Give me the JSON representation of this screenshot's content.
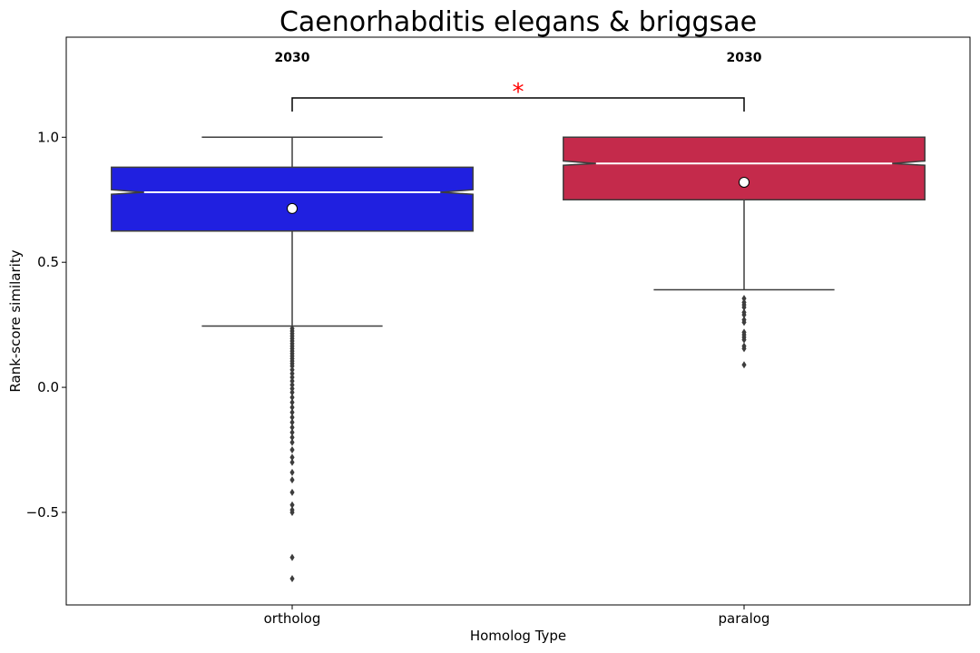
{
  "chart_data": {
    "type": "box",
    "title": "Caenorhabditis elegans & briggsae",
    "xlabel": "Homolog Type",
    "ylabel": "Rank-score similarity",
    "ylim": [
      -0.87,
      1.4
    ],
    "yticks": [
      -0.5,
      0.0,
      0.5,
      1.0
    ],
    "ytick_labels": [
      "−0.5",
      "0.0",
      "0.5",
      "1.0"
    ],
    "grid": false,
    "notched": true,
    "categories": [
      "ortholog",
      "paralog"
    ],
    "series": [
      {
        "category": "ortholog",
        "color": "#2020e0",
        "count_label": "2030",
        "whisker_low": 0.245,
        "q1": 0.625,
        "median": 0.78,
        "notch_low": 0.772,
        "notch_high": 0.79,
        "q3": 0.88,
        "whisker_high": 1.0,
        "mean": 0.715,
        "outliers": [
          0.235,
          0.225,
          0.215,
          0.205,
          0.195,
          0.185,
          0.175,
          0.165,
          0.155,
          0.145,
          0.135,
          0.125,
          0.115,
          0.105,
          0.095,
          0.085,
          0.07,
          0.055,
          0.04,
          0.025,
          0.01,
          -0.005,
          -0.02,
          -0.04,
          -0.06,
          -0.08,
          -0.1,
          -0.12,
          -0.14,
          -0.16,
          -0.18,
          -0.2,
          -0.22,
          -0.25,
          -0.28,
          -0.3,
          -0.34,
          -0.37,
          -0.42,
          -0.47,
          -0.49,
          -0.5,
          -0.68,
          -0.765
        ]
      },
      {
        "category": "paralog",
        "color": "#c42a4b",
        "count_label": "2030",
        "whisker_low": 0.39,
        "q1": 0.75,
        "median": 0.895,
        "notch_low": 0.888,
        "notch_high": 0.905,
        "q3": 1.0,
        "whisker_high": 1.0,
        "mean": 0.82,
        "outliers": [
          0.355,
          0.34,
          0.33,
          0.32,
          0.3,
          0.29,
          0.27,
          0.26,
          0.22,
          0.21,
          0.2,
          0.19,
          0.165,
          0.155,
          0.09
        ]
      }
    ],
    "annotations": [
      {
        "text": "*",
        "color": "#ff0000",
        "between": [
          "ortholog",
          "paralog"
        ],
        "y": 1.15
      }
    ]
  }
}
